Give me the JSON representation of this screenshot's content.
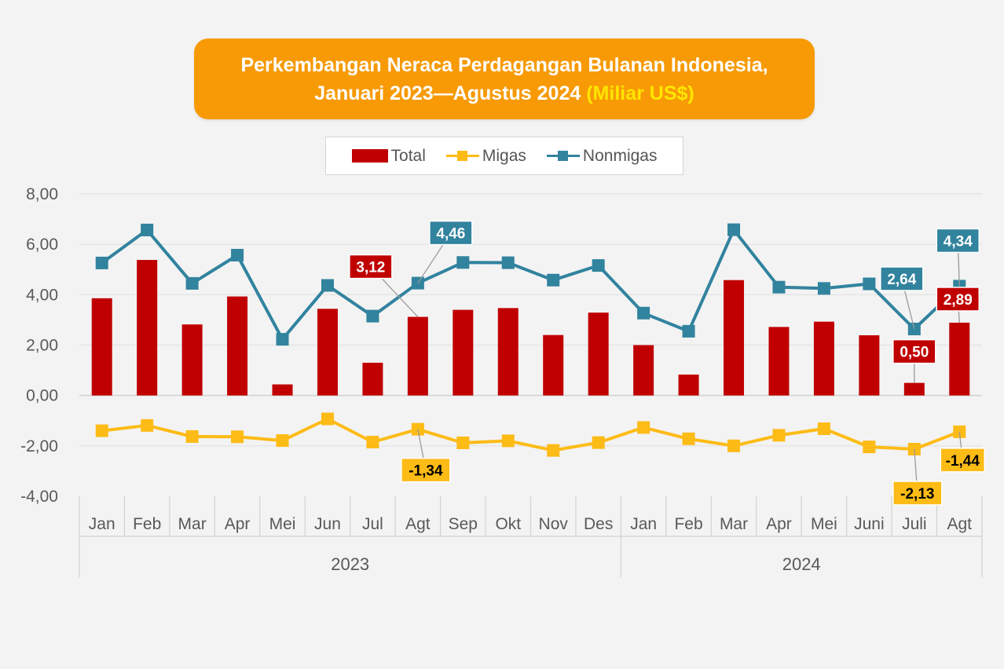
{
  "chart_data": {
    "type": "bar",
    "title_line1": "Perkembangan Neraca Perdagangan Bulanan Indonesia,",
    "title_line2": "Januari 2023—Agustus 2024",
    "title_unit": "(Miliar US$)",
    "ylim": [
      -4,
      8
    ],
    "yticks": [
      "8,00",
      "6,00",
      "4,00",
      "2,00",
      "0,00",
      "-2,00",
      "-4,00"
    ],
    "grid": true,
    "legend_position": "top-center",
    "categories": [
      "Jan",
      "Feb",
      "Mar",
      "Apr",
      "Mei",
      "Jun",
      "Jul",
      "Agt",
      "Sep",
      "Okt",
      "Nov",
      "Des",
      "Jan",
      "Feb",
      "Mar",
      "Apr",
      "Mei",
      "Juni",
      "Juli",
      "Agt"
    ],
    "year_groups": [
      {
        "label": "2023",
        "count": 12
      },
      {
        "label": "2024",
        "count": 8
      }
    ],
    "series": [
      {
        "name": "Total",
        "type": "bar",
        "color": "#c00000",
        "values": [
          3.86,
          5.38,
          2.82,
          3.93,
          0.44,
          3.44,
          1.3,
          3.12,
          3.4,
          3.47,
          2.4,
          3.29,
          2.0,
          0.83,
          4.58,
          2.72,
          2.93,
          2.39,
          0.5,
          2.89
        ]
      },
      {
        "name": "Migas",
        "type": "line",
        "color": "#fdbb16",
        "values": [
          -1.4,
          -1.19,
          -1.63,
          -1.64,
          -1.79,
          -0.93,
          -1.85,
          -1.34,
          -1.88,
          -1.8,
          -2.18,
          -1.87,
          -1.27,
          -1.72,
          -2.0,
          -1.58,
          -1.32,
          -2.04,
          -2.13,
          -1.44
        ]
      },
      {
        "name": "Nonmigas",
        "type": "line",
        "color": "#31839e",
        "values": [
          5.26,
          6.57,
          4.45,
          5.57,
          2.23,
          4.37,
          3.15,
          4.46,
          5.28,
          5.27,
          4.58,
          5.16,
          3.27,
          2.55,
          6.58,
          4.3,
          4.25,
          4.43,
          2.64,
          4.34
        ]
      }
    ],
    "annotations": [
      {
        "series": "Total",
        "index": 7,
        "text": "3,12"
      },
      {
        "series": "Nonmigas",
        "index": 7,
        "text": "4,46"
      },
      {
        "series": "Migas",
        "index": 7,
        "text": "-1,34"
      },
      {
        "series": "Nonmigas",
        "index": 18,
        "text": "2,64"
      },
      {
        "series": "Total",
        "index": 18,
        "text": "0,50"
      },
      {
        "series": "Migas",
        "index": 18,
        "text": "-2,13"
      },
      {
        "series": "Nonmigas",
        "index": 19,
        "text": "4,34"
      },
      {
        "series": "Total",
        "index": 19,
        "text": "2,89"
      },
      {
        "series": "Migas",
        "index": 19,
        "text": "-1,44"
      }
    ]
  }
}
